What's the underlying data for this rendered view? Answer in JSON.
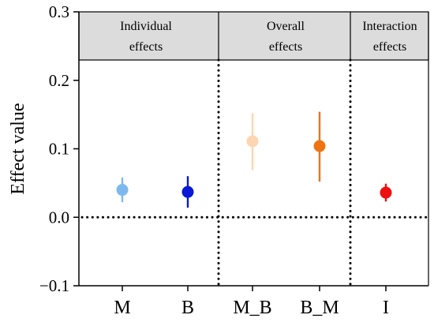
{
  "chart_data": {
    "type": "scatter",
    "ylabel": "Effect value",
    "xlabel": "",
    "ylim": [
      -0.1,
      0.3
    ],
    "yticks": [
      "−0.1",
      "0.0",
      "0.1",
      "0.2",
      "0.3"
    ],
    "ytick_values": [
      -0.1,
      0.0,
      0.1,
      0.2,
      0.3
    ],
    "categories": [
      "M",
      "B",
      "M_B",
      "B_M",
      "I"
    ],
    "values": [
      0.04,
      0.037,
      0.111,
      0.104,
      0.036
    ],
    "err_low": [
      0.022,
      0.014,
      0.069,
      0.052,
      0.023
    ],
    "err_high": [
      0.058,
      0.06,
      0.152,
      0.154,
      0.049
    ],
    "colors": [
      "#7cb9ee",
      "#0a17d6",
      "#fcd6b2",
      "#ee7412",
      "#ee1010"
    ],
    "reference_line": 0.0,
    "groups": [
      {
        "lines": [
          "Individual",
          "effects"
        ],
        "categories": [
          "M",
          "B"
        ]
      },
      {
        "lines": [
          "Overall",
          "effects"
        ],
        "categories": [
          "M_B",
          "B_M"
        ]
      },
      {
        "lines": [
          "Interaction",
          "effects"
        ],
        "categories": [
          "I"
        ]
      }
    ],
    "header_color": "#dcdcdc",
    "grid": false,
    "legend": "none"
  }
}
